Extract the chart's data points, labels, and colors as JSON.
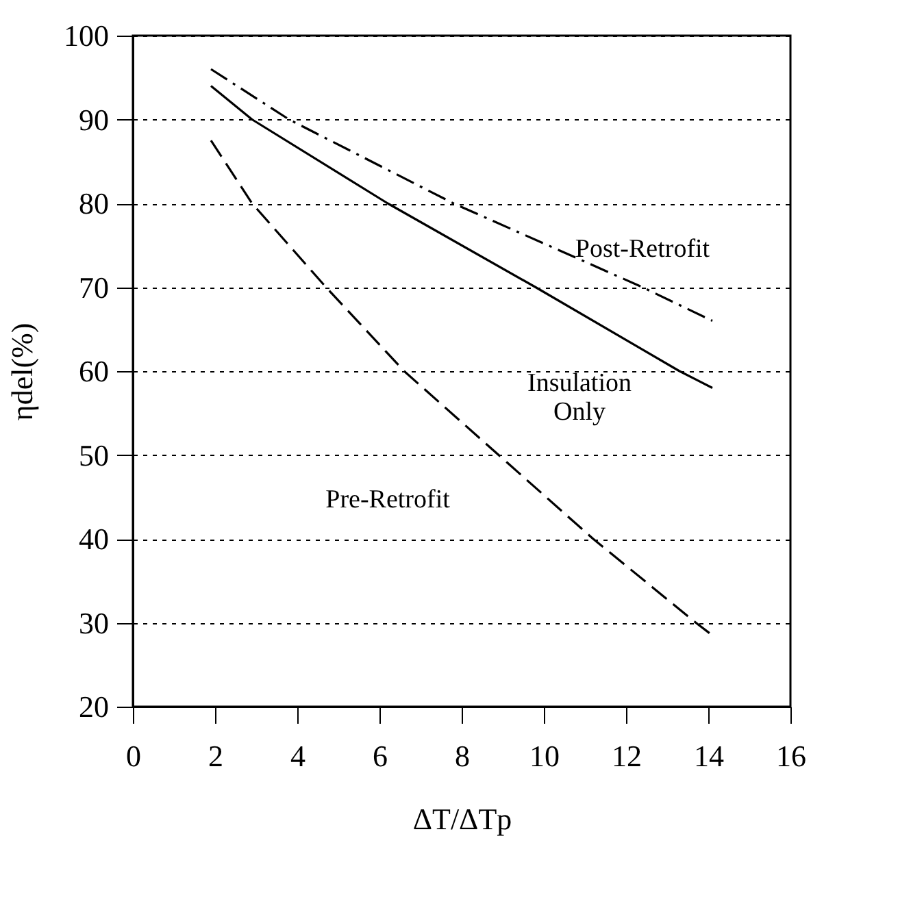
{
  "chart_data": {
    "type": "line",
    "xlabel": "ΔT/ΔTp",
    "ylabel": "ηdel(%)",
    "xlim": [
      0,
      16
    ],
    "xticks": [
      0,
      2,
      4,
      6,
      8,
      10,
      12,
      14,
      16
    ],
    "ylim": [
      20,
      100
    ],
    "yticks": [
      20,
      30,
      40,
      50,
      60,
      70,
      80,
      90,
      100
    ],
    "grid": "y",
    "series": [
      {
        "color": "#000000",
        "line_style": "dashdot",
        "x": [
          1.9,
          3.8,
          7.8,
          12.4,
          14.1
        ],
        "values": [
          96,
          90,
          80,
          70,
          66
        ]
      },
      {
        "color": "#000000",
        "line_style": "solid",
        "x": [
          1.9,
          2.9,
          6.2,
          9.8,
          13.3,
          14.1
        ],
        "values": [
          94,
          90,
          80,
          70,
          60,
          58
        ]
      },
      {
        "color": "#000000",
        "line_style": "dashed",
        "x": [
          1.9,
          2.9,
          4.7,
          6.6,
          8.9,
          11.2,
          13.7,
          14.1
        ],
        "values": [
          87.5,
          80,
          70,
          60,
          50,
          40,
          30,
          28.5
        ]
      }
    ],
    "annotations": [
      {
        "text": "Post-Retrofit",
        "x": 12.2,
        "y": 71
      },
      {
        "text": "Insulation Only",
        "x": 11.2,
        "y": 66
      },
      {
        "text": "Pre-Retrofit",
        "x": 9.2,
        "y": 49
      }
    ]
  }
}
